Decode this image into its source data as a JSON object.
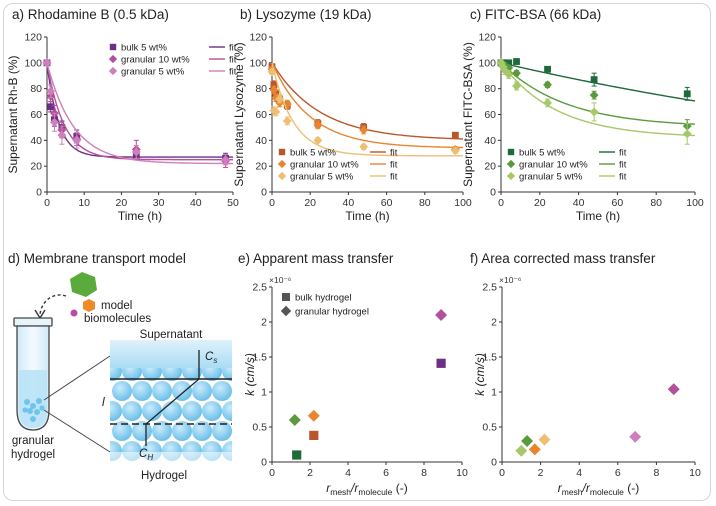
{
  "colors": {
    "purple": "#6b2f86",
    "magenta": "#b4509a",
    "pink": "#cf7fbd",
    "orange_dark": "#b9572b",
    "orange": "#e8852e",
    "orange_light": "#edbf72",
    "green_dark": "#1f6a3a",
    "green": "#5a9a3d",
    "green_light": "#a6c86a",
    "gray": "#555555",
    "hydrogel_blue": "#7cc5ea"
  },
  "panel_d": {
    "title": "d) Membrane transport model",
    "model_label_1": "model",
    "model_label_2": "biomolecules",
    "supernatant": "Supernatant",
    "cs_main": "C",
    "cs_sub": "s",
    "ch_main": "C",
    "ch_sub": "H",
    "thickness": "l",
    "tube_label_1": "granular",
    "tube_label_2": "hydrogel",
    "hydrogel": "Hydrogel"
  },
  "chart_data": [
    {
      "id": "a",
      "type": "scatter",
      "title": "a) Rhodamine B (0.5 kDa)",
      "xlabel": "Time (h)",
      "ylabel": "Supernatant Rh-B (%)",
      "xlim": [
        0,
        50
      ],
      "ylim": [
        0,
        120
      ],
      "xticks": [
        0,
        10,
        20,
        30,
        40,
        50
      ],
      "yticks": [
        0,
        20,
        40,
        60,
        80,
        100,
        120
      ],
      "legend_position": "top-right",
      "fit_label": "fit",
      "series": [
        {
          "name": "bulk 5 wt%",
          "color": "#6b2f86",
          "marker": "square",
          "x": [
            0,
            1,
            2,
            4,
            8,
            24,
            48
          ],
          "y": [
            100,
            66,
            56,
            50,
            43,
            28,
            26
          ],
          "err": [
            2,
            4,
            5,
            5,
            5,
            3,
            4
          ],
          "fit_k": 0.32,
          "fit_plateau": 27
        },
        {
          "name": "granular 10 wt%",
          "color": "#b4509a",
          "marker": "diamond",
          "x": [
            0,
            1,
            2,
            4,
            8,
            24,
            48
          ],
          "y": [
            100,
            74,
            61,
            48,
            41,
            33,
            24
          ],
          "err": [
            2,
            4,
            6,
            6,
            5,
            7,
            5
          ],
          "fit_k": 0.22,
          "fit_plateau": 25
        },
        {
          "name": "granular 5 wt%",
          "color": "#cf7fbd",
          "marker": "diamond",
          "x": [
            0,
            1,
            2,
            4,
            8,
            24,
            48
          ],
          "y": [
            100,
            78,
            54,
            44,
            40,
            31,
            25
          ],
          "err": [
            2,
            5,
            7,
            7,
            6,
            5,
            4
          ],
          "fit_k": 0.14,
          "fit_plateau": 22
        }
      ]
    },
    {
      "id": "b",
      "type": "scatter",
      "title": "b) Lysozyme (19 kDa)",
      "xlabel": "Time (h)",
      "ylabel": "Supernatant Lysozyme (%)",
      "xlim": [
        0,
        100
      ],
      "ylim": [
        0,
        120
      ],
      "xticks": [
        0,
        20,
        40,
        60,
        80,
        100
      ],
      "yticks": [
        0,
        20,
        40,
        60,
        80,
        100,
        120
      ],
      "legend_position": "bottom-left",
      "fit_label": "fit",
      "series": [
        {
          "name": "bulk 5 wt%",
          "color": "#b9572b",
          "marker": "square",
          "x": [
            0,
            1,
            2,
            4,
            8,
            24,
            48,
            96
          ],
          "y": [
            97,
            83,
            76,
            72,
            67,
            53,
            50,
            44
          ],
          "err": [
            2,
            3,
            3,
            3,
            3,
            3,
            3,
            2
          ],
          "fit_k": 0.04,
          "fit_plateau": 40
        },
        {
          "name": "granular 10 wt%",
          "color": "#e8852e",
          "marker": "diamond",
          "x": [
            0,
            1,
            2,
            4,
            8,
            24,
            48,
            96
          ],
          "y": [
            95,
            79,
            73,
            69,
            68,
            52,
            48,
            33
          ],
          "err": [
            2,
            3,
            3,
            3,
            3,
            3,
            3,
            2
          ],
          "fit_k": 0.05,
          "fit_plateau": 34
        },
        {
          "name": "granular 5 wt%",
          "color": "#edbf72",
          "marker": "diamond",
          "x": [
            0,
            1,
            2,
            4,
            8,
            24,
            48,
            96
          ],
          "y": [
            93,
            63,
            62,
            72,
            55,
            40,
            35,
            32
          ],
          "err": [
            2,
            3,
            3,
            3,
            3,
            2,
            2,
            2
          ],
          "fit_k": 0.09,
          "fit_plateau": 28
        }
      ]
    },
    {
      "id": "c",
      "type": "scatter",
      "title": "c) FITC-BSA (66 kDa)",
      "xlabel": "Time (h)",
      "ylabel": "Supernatant FITC-BSA (%)",
      "xlim": [
        0,
        100
      ],
      "ylim": [
        0,
        120
      ],
      "xticks": [
        0,
        20,
        40,
        60,
        80,
        100
      ],
      "yticks": [
        0,
        20,
        40,
        60,
        80,
        100,
        120
      ],
      "legend_position": "bottom-left",
      "fit_label": "fit",
      "series": [
        {
          "name": "bulk 5 wt%",
          "color": "#1f6a3a",
          "marker": "square",
          "x": [
            0,
            1,
            2,
            4,
            8,
            24,
            48,
            96
          ],
          "y": [
            100,
            100,
            100,
            100,
            101,
            95,
            87,
            76
          ],
          "err": [
            2,
            2,
            2,
            2,
            2,
            2,
            5,
            5
          ],
          "fit_k": 0.0035,
          "fit_plateau": 0
        },
        {
          "name": "granular 10 wt%",
          "color": "#5a9a3d",
          "marker": "diamond",
          "x": [
            0,
            1,
            2,
            4,
            8,
            24,
            48,
            96
          ],
          "y": [
            100,
            99,
            98,
            96,
            92,
            83,
            75,
            51
          ],
          "err": [
            2,
            2,
            2,
            2,
            2,
            2,
            3,
            5
          ],
          "fit_k": 0.03,
          "fit_plateau": 50
        },
        {
          "name": "granular 5 wt%",
          "color": "#a6c86a",
          "marker": "diamond",
          "x": [
            0,
            1,
            2,
            4,
            8,
            24,
            48,
            96
          ],
          "y": [
            100,
            97,
            94,
            91,
            82,
            69,
            62,
            45
          ],
          "err": [
            2,
            2,
            3,
            3,
            3,
            3,
            7,
            8
          ],
          "fit_k": 0.035,
          "fit_plateau": 42
        }
      ]
    },
    {
      "id": "e",
      "type": "scatter",
      "title": "e) Apparent mass transfer",
      "xlabel_main": "r",
      "xlabel_sub1": "mesh",
      "xlabel_slash": "/r",
      "xlabel_sub2": "molecule",
      "xlabel_tail": " (-)",
      "ylabel": "k (cm/s)",
      "scale_label": "×10⁻⁶",
      "xlim": [
        0,
        10
      ],
      "ylim": [
        0,
        2.5
      ],
      "xticks": [
        0,
        2,
        4,
        6,
        8,
        10
      ],
      "yticks": [
        0,
        0.5,
        1,
        1.5,
        2,
        2.5
      ],
      "legend": [
        "bulk hydrogel",
        "granular hydrogel"
      ],
      "legend_position": "top-left",
      "points": [
        {
          "x": 1.3,
          "y": 0.1,
          "color": "#1f6a3a",
          "marker": "square"
        },
        {
          "x": 1.2,
          "y": 0.6,
          "color": "#5a9a3d",
          "marker": "diamond"
        },
        {
          "x": 2.2,
          "y": 0.38,
          "color": "#b9572b",
          "marker": "square"
        },
        {
          "x": 2.2,
          "y": 0.66,
          "color": "#e8852e",
          "marker": "diamond"
        },
        {
          "x": 8.9,
          "y": 1.41,
          "color": "#6b2f86",
          "marker": "square"
        },
        {
          "x": 8.9,
          "y": 2.1,
          "color": "#b4509a",
          "marker": "diamond"
        }
      ]
    },
    {
      "id": "f",
      "type": "scatter",
      "title": "f) Area corrected mass transfer",
      "xlabel_main": "r",
      "xlabel_sub1": "mesh",
      "xlabel_slash": "/r",
      "xlabel_sub2": "molecule",
      "xlabel_tail": " (-)",
      "ylabel": "k (cm/s)",
      "scale_label": "×10⁻⁶",
      "xlim": [
        0,
        10
      ],
      "ylim": [
        0,
        2.5
      ],
      "xticks": [
        0,
        2,
        4,
        6,
        8,
        10
      ],
      "yticks": [
        0,
        0.5,
        1,
        1.5,
        2,
        2.5
      ],
      "points": [
        {
          "x": 1.0,
          "y": 0.16,
          "color": "#a6c86a",
          "marker": "diamond"
        },
        {
          "x": 1.3,
          "y": 0.3,
          "color": "#5a9a3d",
          "marker": "diamond"
        },
        {
          "x": 1.7,
          "y": 0.18,
          "color": "#e8852e",
          "marker": "diamond"
        },
        {
          "x": 2.2,
          "y": 0.32,
          "color": "#edbf72",
          "marker": "diamond"
        },
        {
          "x": 6.9,
          "y": 0.36,
          "color": "#cf7fbd",
          "marker": "diamond"
        },
        {
          "x": 8.9,
          "y": 1.04,
          "color": "#b4509a",
          "marker": "diamond"
        }
      ]
    }
  ]
}
